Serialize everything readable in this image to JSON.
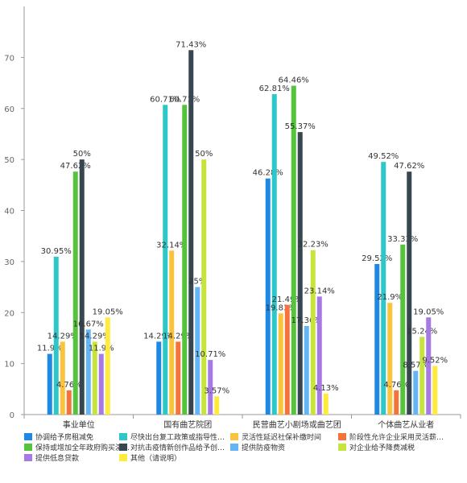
{
  "chart_data": {
    "type": "bar",
    "categories": [
      "事业单位",
      "国有曲艺院团",
      "民营曲艺小剧场或曲艺团",
      "个体曲艺从业者"
    ],
    "ylim": [
      0,
      80
    ],
    "yticks": [
      0,
      10,
      20,
      30,
      40,
      50,
      60,
      70
    ],
    "grid": false,
    "legend_position": "bottom",
    "series": [
      {
        "name": "协调给予房租减免",
        "color": "#1e88e5",
        "values": [
          11.9,
          14.29,
          46.28,
          29.52
        ],
        "labels": [
          "11.9%",
          "14.29%",
          "46.28%",
          "29.52%"
        ]
      },
      {
        "name": "尽快出台复工政策或指导性…",
        "color": "#2ec7c9",
        "values": [
          30.95,
          60.71,
          62.81,
          49.52
        ],
        "labels": [
          "30.95%",
          "60.71%",
          "62.81%",
          "49.52%"
        ]
      },
      {
        "name": "灵活性延迟社保补缴时间",
        "color": "#f9c33c",
        "values": [
          14.29,
          32.14,
          19.83,
          21.9
        ],
        "labels": [
          "14.29%",
          "32.14%",
          "19.83%",
          "21.9%"
        ]
      },
      {
        "name": "阶段性允许企业采用灵活薪…",
        "color": "#f4733a",
        "values": [
          4.76,
          14.29,
          21.49,
          4.76
        ],
        "labels": [
          "4.76%",
          "14.29%",
          "21.49%",
          "4.76%"
        ]
      },
      {
        "name": "保持或增加全年政府购买演…",
        "color": "#55c33c",
        "values": [
          47.62,
          60.71,
          64.46,
          33.33
        ],
        "labels": [
          "47.62%",
          "60.71%",
          "64.46%",
          "33.33%"
        ]
      },
      {
        "name": "对抗击疫情新创作品给予创…",
        "color": "#37474f",
        "values": [
          50,
          71.43,
          55.37,
          47.62
        ],
        "labels": [
          "50%",
          "71.43%",
          "55.37%",
          "47.62%"
        ]
      },
      {
        "name": "提供防疫物资",
        "color": "#64b5f6",
        "values": [
          16.67,
          25,
          17.36,
          8.57
        ],
        "labels": [
          "16.67%",
          "25%",
          "17.36%",
          "8.57%"
        ]
      },
      {
        "name": "对企业给予降费减税",
        "color": "#c6e43c",
        "values": [
          14.29,
          50,
          32.23,
          15.24
        ],
        "labels": [
          "14.29%",
          "50%",
          "32.23%",
          "15.24%"
        ]
      },
      {
        "name": "提供低息贷款",
        "color": "#a779e4",
        "values": [
          11.9,
          10.71,
          23.14,
          19.05
        ],
        "labels": [
          "11.9%",
          "10.71%",
          "23.14%",
          "19.05%"
        ]
      },
      {
        "name": "其他（请说明）",
        "color": "#ffeb3b",
        "values": [
          19.05,
          3.57,
          4.13,
          9.52
        ],
        "labels": [
          "19.05%",
          "3.57%",
          "4.13%",
          "9.52%"
        ]
      }
    ]
  }
}
